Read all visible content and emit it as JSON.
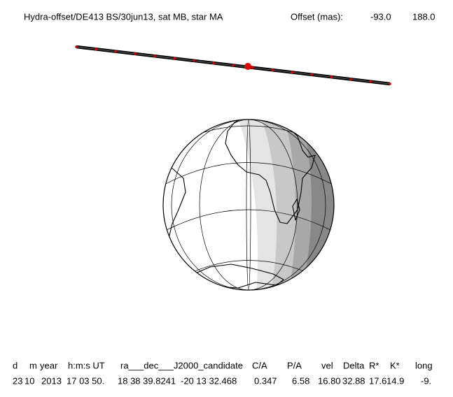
{
  "header": {
    "title": "Hydra-offset/DE413 BS/30jun13, sat MB, star MA",
    "offset_label": "Offset (mas):",
    "offset_values": [
      "-93.0",
      "188.0"
    ]
  },
  "table": {
    "headers": [
      "d",
      "m",
      "year",
      "h:m:s UT",
      "ra___dec___J2000_candidate",
      "C/A",
      "P/A",
      "vel",
      "Delta",
      "R*",
      "K*",
      "long"
    ],
    "rows": [
      [
        "23",
        "10",
        "2013",
        "17 03 50.",
        "18 38 39.8241",
        "-20 13  32.468",
        "0.347",
        "6.58",
        "16.80",
        "32.88",
        "17.6",
        "14.9",
        "-9."
      ]
    ]
  }
}
